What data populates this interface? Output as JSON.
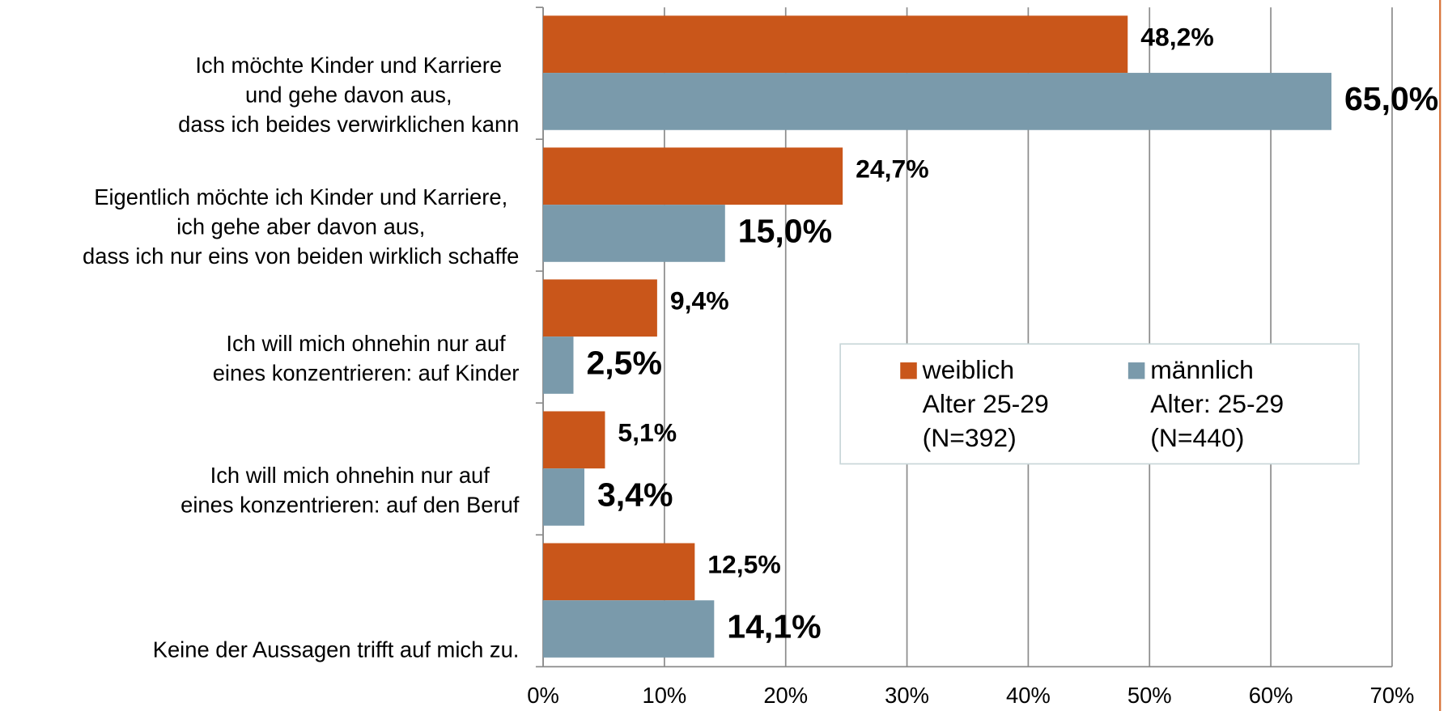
{
  "chart_data": {
    "type": "hbar",
    "categories": [
      [
        "Ich möchte Kinder und Karriere",
        "und gehe davon aus,",
        "dass ich beides verwirklichen kann"
      ],
      [
        "Eigentlich möchte ich Kinder und Karriere,",
        "ich gehe aber davon aus,",
        "dass ich nur eins von beiden wirklich schaffe"
      ],
      [
        "Ich will mich ohnehin nur auf",
        "eines konzentrieren: auf Kinder"
      ],
      [
        "Ich will mich ohnehin nur auf",
        "eines konzentrieren: auf den Beruf"
      ],
      [
        "Keine der Aussagen trifft auf mich zu."
      ]
    ],
    "series": [
      {
        "name": [
          "weiblich",
          "Alter 25-29",
          "(N=392)"
        ],
        "color": "#c9561a",
        "values": [
          48.2,
          24.7,
          9.4,
          5.1,
          12.5
        ],
        "value_labels": [
          "48,2%",
          "24,7%",
          "9,4%",
          "5,1%",
          "12,5%"
        ]
      },
      {
        "name": [
          "männlich",
          "Alter: 25-29",
          "(N=440)"
        ],
        "color": "#7a9aab",
        "values": [
          65.0,
          15.0,
          2.5,
          3.4,
          14.1
        ],
        "value_labels": [
          "65,0%",
          "15,0%",
          "2,5%",
          "3,4%",
          "14,1%"
        ]
      }
    ],
    "xlim": [
      0,
      70
    ],
    "xticks": [
      {
        "value": 0,
        "label": "0%"
      },
      {
        "value": 10,
        "label": "10%"
      },
      {
        "value": 20,
        "label": "20%"
      },
      {
        "value": 30,
        "label": "30%"
      },
      {
        "value": 40,
        "label": "40%"
      },
      {
        "value": 50,
        "label": "50%"
      },
      {
        "value": 60,
        "label": "60%"
      },
      {
        "value": 70,
        "label": "70%"
      }
    ],
    "grid": true
  }
}
